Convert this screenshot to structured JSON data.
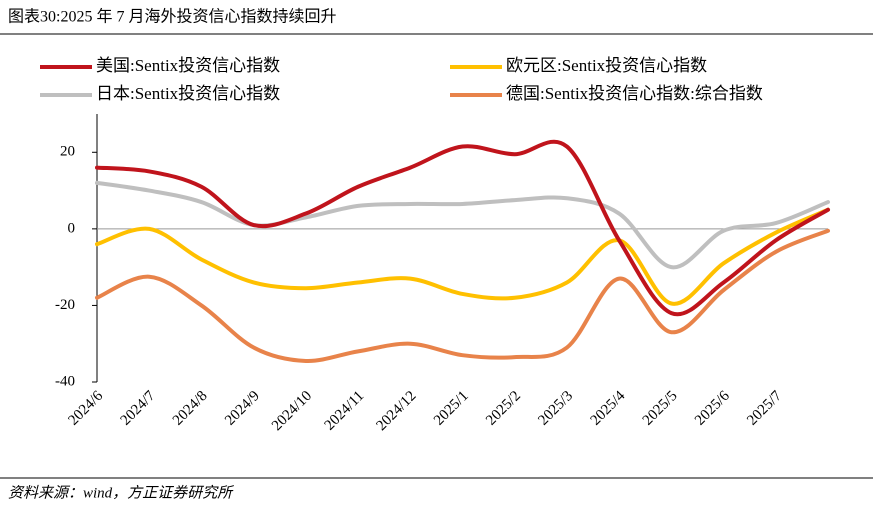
{
  "chart_data": {
    "type": "line",
    "title": "图表30:2025 年 7 月海外投资信心指数持续回升",
    "source": "资料来源：wind，方正证券研究所",
    "categories": [
      "2024/6",
      "2024/7",
      "2024/8",
      "2024/9",
      "2024/10",
      "2024/11",
      "2024/12",
      "2025/1",
      "2025/2",
      "2025/3",
      "2025/4",
      "2025/5",
      "2025/6",
      "2025/7",
      null
    ],
    "series": [
      {
        "name": "美国:Sentix投资信心指数",
        "color": "#c0141c",
        "values": [
          16,
          15,
          11,
          1,
          4,
          11,
          16,
          21.5,
          19.5,
          21.5,
          -3,
          -22,
          -14,
          -3,
          5
        ]
      },
      {
        "name": "欧元区:Sentix投资信心指数",
        "color": "#ffc000",
        "values": [
          -4,
          0,
          -8,
          -14,
          -15.5,
          -14,
          -13,
          -17,
          -18,
          -14,
          -3,
          -19.5,
          -9,
          -1,
          5
        ]
      },
      {
        "name": "日本:Sentix投资信心指数",
        "color": "#bfbfbf",
        "values": [
          12,
          10,
          7,
          1,
          3,
          6,
          6.5,
          6.5,
          7.5,
          8,
          4,
          -10,
          -0.5,
          1.5,
          7
        ]
      },
      {
        "name": "德国:Sentix投资信心指数:综合指数",
        "color": "#e8834a",
        "values": [
          -18,
          -12.5,
          -20,
          -31,
          -34.5,
          -32,
          -30,
          -33,
          -33.5,
          -31,
          -13,
          -27,
          -16,
          -6,
          -0.5
        ]
      }
    ],
    "ylim": [
      -40,
      30
    ],
    "yticks": [
      -40,
      -20,
      0,
      20
    ]
  }
}
